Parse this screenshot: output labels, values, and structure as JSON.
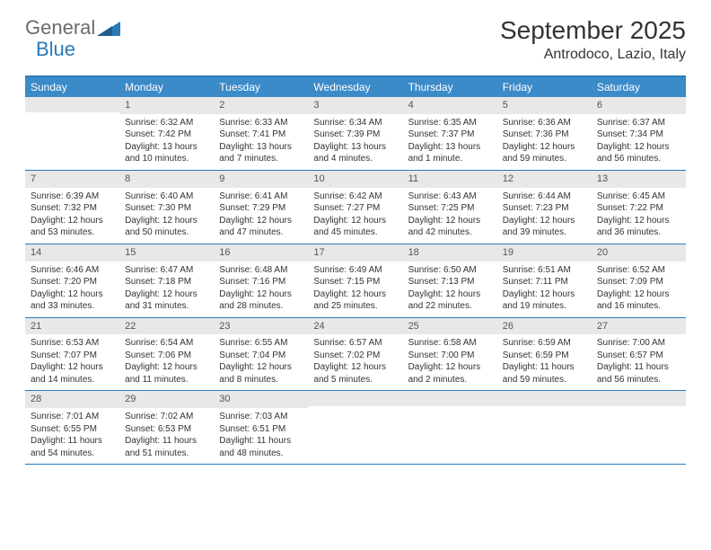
{
  "logo": {
    "text_a": "General",
    "text_b": "Blue",
    "triangle_color": "#2a7ab8"
  },
  "title": "September 2025",
  "location": "Antrodoco, Lazio, Italy",
  "colors": {
    "header_bar": "#3b8bc9",
    "rule": "#2a7ab8",
    "daynum_bg": "#e8e8e8",
    "text": "#333333",
    "muted": "#6b6b6b",
    "bg": "#ffffff"
  },
  "typography": {
    "title_fontsize": 28,
    "location_fontsize": 16,
    "dayname_fontsize": 12,
    "cell_fontsize": 10
  },
  "layout": {
    "columns": 7,
    "rows": 5,
    "cell_min_height": 78
  },
  "daynames": [
    "Sunday",
    "Monday",
    "Tuesday",
    "Wednesday",
    "Thursday",
    "Friday",
    "Saturday"
  ],
  "weeks": [
    [
      {
        "n": "",
        "sunrise": "",
        "sunset": "",
        "daylight": ""
      },
      {
        "n": "1",
        "sunrise": "Sunrise: 6:32 AM",
        "sunset": "Sunset: 7:42 PM",
        "daylight": "Daylight: 13 hours and 10 minutes."
      },
      {
        "n": "2",
        "sunrise": "Sunrise: 6:33 AM",
        "sunset": "Sunset: 7:41 PM",
        "daylight": "Daylight: 13 hours and 7 minutes."
      },
      {
        "n": "3",
        "sunrise": "Sunrise: 6:34 AM",
        "sunset": "Sunset: 7:39 PM",
        "daylight": "Daylight: 13 hours and 4 minutes."
      },
      {
        "n": "4",
        "sunrise": "Sunrise: 6:35 AM",
        "sunset": "Sunset: 7:37 PM",
        "daylight": "Daylight: 13 hours and 1 minute."
      },
      {
        "n": "5",
        "sunrise": "Sunrise: 6:36 AM",
        "sunset": "Sunset: 7:36 PM",
        "daylight": "Daylight: 12 hours and 59 minutes."
      },
      {
        "n": "6",
        "sunrise": "Sunrise: 6:37 AM",
        "sunset": "Sunset: 7:34 PM",
        "daylight": "Daylight: 12 hours and 56 minutes."
      }
    ],
    [
      {
        "n": "7",
        "sunrise": "Sunrise: 6:39 AM",
        "sunset": "Sunset: 7:32 PM",
        "daylight": "Daylight: 12 hours and 53 minutes."
      },
      {
        "n": "8",
        "sunrise": "Sunrise: 6:40 AM",
        "sunset": "Sunset: 7:30 PM",
        "daylight": "Daylight: 12 hours and 50 minutes."
      },
      {
        "n": "9",
        "sunrise": "Sunrise: 6:41 AM",
        "sunset": "Sunset: 7:29 PM",
        "daylight": "Daylight: 12 hours and 47 minutes."
      },
      {
        "n": "10",
        "sunrise": "Sunrise: 6:42 AM",
        "sunset": "Sunset: 7:27 PM",
        "daylight": "Daylight: 12 hours and 45 minutes."
      },
      {
        "n": "11",
        "sunrise": "Sunrise: 6:43 AM",
        "sunset": "Sunset: 7:25 PM",
        "daylight": "Daylight: 12 hours and 42 minutes."
      },
      {
        "n": "12",
        "sunrise": "Sunrise: 6:44 AM",
        "sunset": "Sunset: 7:23 PM",
        "daylight": "Daylight: 12 hours and 39 minutes."
      },
      {
        "n": "13",
        "sunrise": "Sunrise: 6:45 AM",
        "sunset": "Sunset: 7:22 PM",
        "daylight": "Daylight: 12 hours and 36 minutes."
      }
    ],
    [
      {
        "n": "14",
        "sunrise": "Sunrise: 6:46 AM",
        "sunset": "Sunset: 7:20 PM",
        "daylight": "Daylight: 12 hours and 33 minutes."
      },
      {
        "n": "15",
        "sunrise": "Sunrise: 6:47 AM",
        "sunset": "Sunset: 7:18 PM",
        "daylight": "Daylight: 12 hours and 31 minutes."
      },
      {
        "n": "16",
        "sunrise": "Sunrise: 6:48 AM",
        "sunset": "Sunset: 7:16 PM",
        "daylight": "Daylight: 12 hours and 28 minutes."
      },
      {
        "n": "17",
        "sunrise": "Sunrise: 6:49 AM",
        "sunset": "Sunset: 7:15 PM",
        "daylight": "Daylight: 12 hours and 25 minutes."
      },
      {
        "n": "18",
        "sunrise": "Sunrise: 6:50 AM",
        "sunset": "Sunset: 7:13 PM",
        "daylight": "Daylight: 12 hours and 22 minutes."
      },
      {
        "n": "19",
        "sunrise": "Sunrise: 6:51 AM",
        "sunset": "Sunset: 7:11 PM",
        "daylight": "Daylight: 12 hours and 19 minutes."
      },
      {
        "n": "20",
        "sunrise": "Sunrise: 6:52 AM",
        "sunset": "Sunset: 7:09 PM",
        "daylight": "Daylight: 12 hours and 16 minutes."
      }
    ],
    [
      {
        "n": "21",
        "sunrise": "Sunrise: 6:53 AM",
        "sunset": "Sunset: 7:07 PM",
        "daylight": "Daylight: 12 hours and 14 minutes."
      },
      {
        "n": "22",
        "sunrise": "Sunrise: 6:54 AM",
        "sunset": "Sunset: 7:06 PM",
        "daylight": "Daylight: 12 hours and 11 minutes."
      },
      {
        "n": "23",
        "sunrise": "Sunrise: 6:55 AM",
        "sunset": "Sunset: 7:04 PM",
        "daylight": "Daylight: 12 hours and 8 minutes."
      },
      {
        "n": "24",
        "sunrise": "Sunrise: 6:57 AM",
        "sunset": "Sunset: 7:02 PM",
        "daylight": "Daylight: 12 hours and 5 minutes."
      },
      {
        "n": "25",
        "sunrise": "Sunrise: 6:58 AM",
        "sunset": "Sunset: 7:00 PM",
        "daylight": "Daylight: 12 hours and 2 minutes."
      },
      {
        "n": "26",
        "sunrise": "Sunrise: 6:59 AM",
        "sunset": "Sunset: 6:59 PM",
        "daylight": "Daylight: 11 hours and 59 minutes."
      },
      {
        "n": "27",
        "sunrise": "Sunrise: 7:00 AM",
        "sunset": "Sunset: 6:57 PM",
        "daylight": "Daylight: 11 hours and 56 minutes."
      }
    ],
    [
      {
        "n": "28",
        "sunrise": "Sunrise: 7:01 AM",
        "sunset": "Sunset: 6:55 PM",
        "daylight": "Daylight: 11 hours and 54 minutes."
      },
      {
        "n": "29",
        "sunrise": "Sunrise: 7:02 AM",
        "sunset": "Sunset: 6:53 PM",
        "daylight": "Daylight: 11 hours and 51 minutes."
      },
      {
        "n": "30",
        "sunrise": "Sunrise: 7:03 AM",
        "sunset": "Sunset: 6:51 PM",
        "daylight": "Daylight: 11 hours and 48 minutes."
      },
      {
        "n": "",
        "sunrise": "",
        "sunset": "",
        "daylight": ""
      },
      {
        "n": "",
        "sunrise": "",
        "sunset": "",
        "daylight": ""
      },
      {
        "n": "",
        "sunrise": "",
        "sunset": "",
        "daylight": ""
      },
      {
        "n": "",
        "sunrise": "",
        "sunset": "",
        "daylight": ""
      }
    ]
  ]
}
